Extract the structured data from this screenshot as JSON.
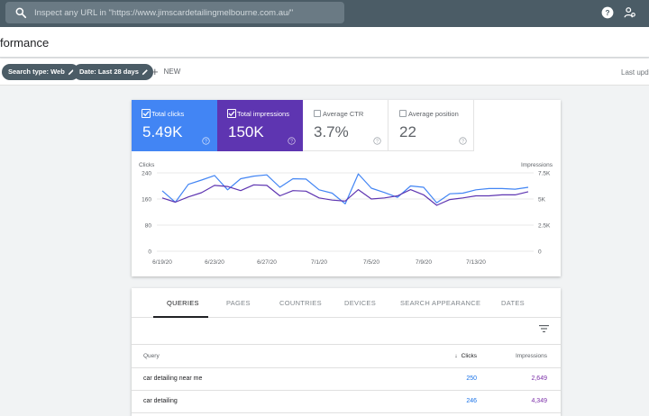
{
  "search": {
    "placeholder": "Inspect any URL in \"https://www.jimscardetailingmelbourne.com.au/\""
  },
  "header": {
    "title": "formance"
  },
  "filters": {
    "search_type": "Search type: Web",
    "date": "Date: Last 28 days",
    "new_label": "NEW",
    "last_update": "Last upd"
  },
  "metrics": [
    {
      "label": "Total clicks",
      "value": "5.49K",
      "checked": true,
      "color": "#4285f4"
    },
    {
      "label": "Total impressions",
      "value": "150K",
      "checked": true,
      "color": "#5e35b1"
    },
    {
      "label": "Average CTR",
      "value": "3.7%",
      "checked": false
    },
    {
      "label": "Average position",
      "value": "22",
      "checked": false
    }
  ],
  "chart_data": {
    "type": "line",
    "left_axis_label": "Clicks",
    "right_axis_label": "Impressions",
    "left_ticks": [
      "240",
      "160",
      "80",
      "0"
    ],
    "right_ticks": [
      "7.5K",
      "5K",
      "2.5K",
      "0"
    ],
    "x_tick_labels": [
      "6/19/20",
      "6/23/20",
      "6/27/20",
      "7/1/20",
      "7/5/20",
      "7/9/20",
      "7/13/20"
    ],
    "left_ylim": [
      0,
      240
    ],
    "right_ylim": [
      0,
      7500
    ],
    "grid": true,
    "series": [
      {
        "name": "Clicks",
        "axis": "left",
        "color": "#4285f4",
        "values": [
          185,
          150,
          205,
          218,
          232,
          188,
          222,
          230,
          234,
          196,
          222,
          221,
          188,
          178,
          145,
          237,
          193,
          180,
          165,
          200,
          196,
          148,
          176,
          178,
          188,
          192,
          192,
          190,
          196
        ]
      },
      {
        "name": "Impressions",
        "axis": "left-scaled",
        "color": "#5e35b1",
        "values": [
          5100,
          4700,
          5200,
          5600,
          6300,
          6200,
          5800,
          6350,
          6300,
          5300,
          5800,
          5750,
          5100,
          4900,
          4800,
          5900,
          5000,
          5100,
          5300,
          5900,
          5400,
          4400,
          4950,
          5100,
          5300,
          5300,
          5400,
          5400,
          5700
        ]
      }
    ]
  },
  "tabs": [
    "QUERIES",
    "PAGES",
    "COUNTRIES",
    "DEVICES",
    "SEARCH APPEARANCE",
    "DATES"
  ],
  "table": {
    "columns": {
      "query": "Query",
      "clicks": "Clicks",
      "impressions": "Impressions"
    },
    "rows": [
      {
        "query": "car detailing near me",
        "clicks": "250",
        "impressions": "2,649"
      },
      {
        "query": "car detailing",
        "clicks": "246",
        "impressions": "4,349"
      }
    ]
  }
}
